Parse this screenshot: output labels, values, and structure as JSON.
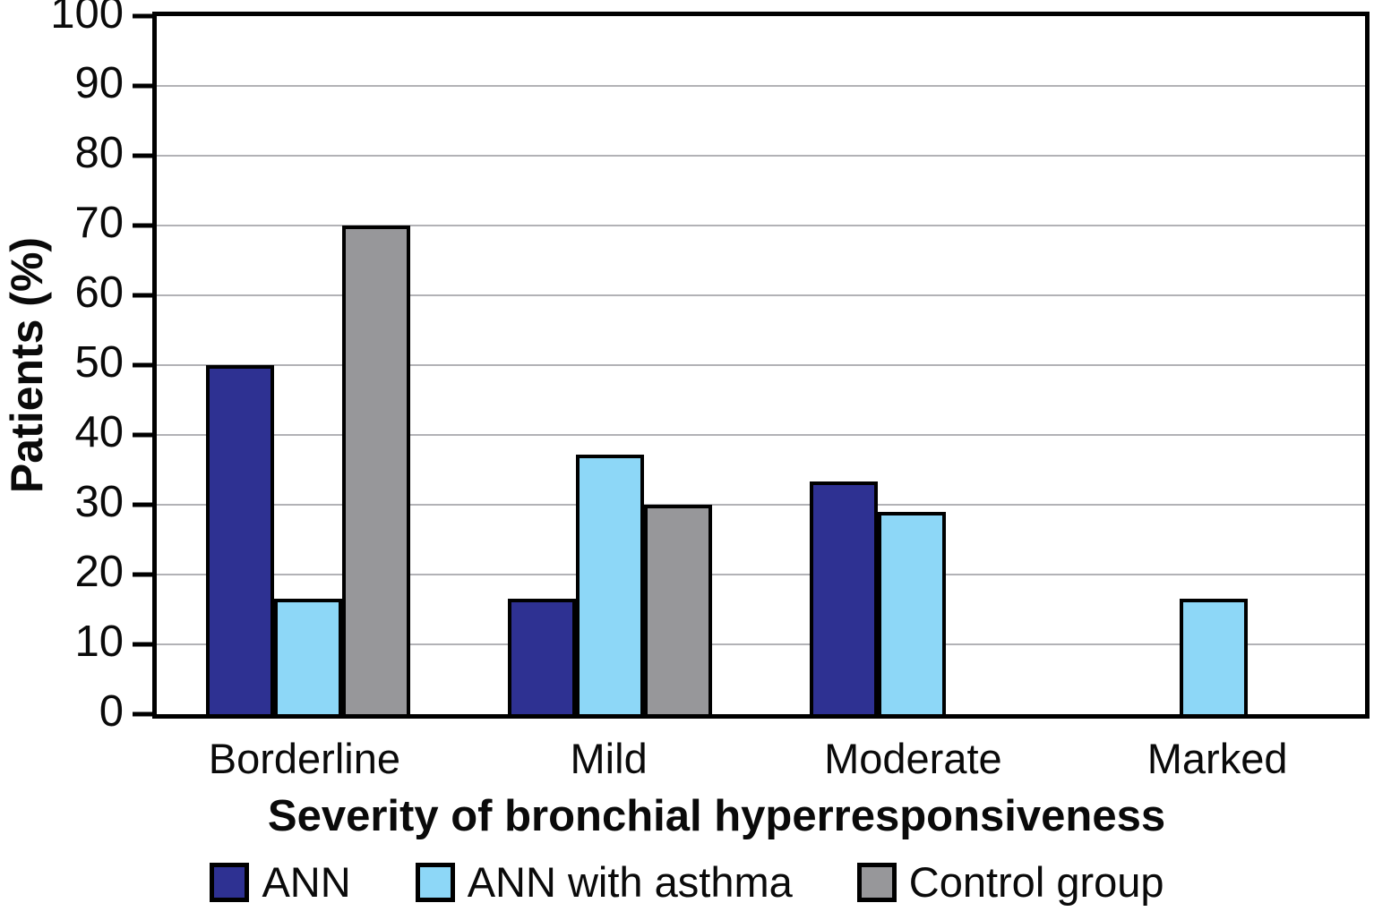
{
  "chart_data": {
    "type": "bar",
    "title": "",
    "xlabel": "Severity of bronchial hyperresponsiveness",
    "ylabel": "Patients (%)",
    "categories": [
      "Borderline",
      "Mild",
      "Moderate",
      "Marked"
    ],
    "series": [
      {
        "name": "ANN",
        "color": "#2e3192",
        "values": [
          50,
          16.5,
          33.3,
          0
        ]
      },
      {
        "name": "ANN with asthma",
        "color": "#8dd7f7",
        "values": [
          16.5,
          37.2,
          29,
          16.5
        ]
      },
      {
        "name": "Control group",
        "color": "#97979a",
        "values": [
          70,
          30,
          0,
          0
        ]
      }
    ],
    "ylim": [
      0,
      100
    ],
    "ytick_step": 10,
    "grid": true,
    "legend_position": "bottom",
    "colors": {
      "frame": "#000000",
      "gridline": "#b2b2b6",
      "background": "#ffffff",
      "text": "#0a0a0a"
    }
  }
}
